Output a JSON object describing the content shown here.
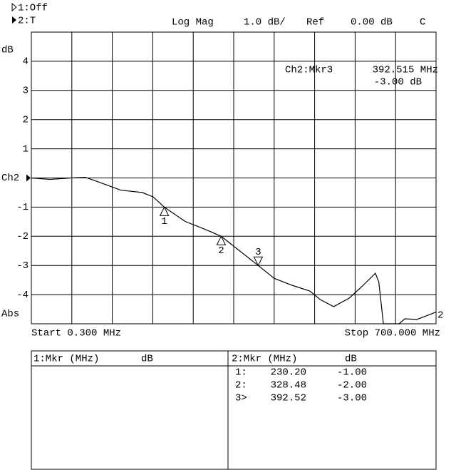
{
  "chart_data": {
    "type": "line",
    "y_unit_label": "dB",
    "ref_label": "Abs",
    "trace_label": "2",
    "start_label": "Start 0.300 MHz",
    "stop_label": "Stop 700.000 MHz",
    "x": [
      0.3,
      32,
      69,
      94,
      118,
      155,
      192,
      211,
      230.2,
      266,
      303,
      328.5,
      352,
      392.5,
      420,
      451,
      482,
      500,
      523,
      550,
      574,
      595,
      601,
      609,
      636,
      646,
      667,
      700
    ],
    "values": [
      0,
      -0.05,
      0,
      0.02,
      -0.15,
      -0.42,
      -0.5,
      -0.65,
      -1.0,
      -1.49,
      -1.78,
      -2.0,
      -2.37,
      -3.0,
      -3.44,
      -3.68,
      -3.88,
      -4.17,
      -4.41,
      -4.12,
      -3.68,
      -3.27,
      -3.56,
      -5.0,
      -5.0,
      -4.83,
      -4.85,
      -4.6
    ],
    "color": "#000000",
    "xlim": [
      0.3,
      700
    ],
    "ylim": [
      -5,
      5
    ],
    "yticks": [
      4,
      3,
      2,
      1,
      {
        "value": 0,
        "label": "Ch2"
      },
      -1,
      -2,
      -3,
      -4
    ],
    "grid": true,
    "markers": [
      {
        "label": "1",
        "x": 230.2,
        "value": -1.0,
        "active": false
      },
      {
        "label": "2",
        "x": 328.48,
        "value": -2.0,
        "active": false
      },
      {
        "label": "3",
        "x": 392.52,
        "value": -3.0,
        "active": true
      }
    ]
  },
  "header": {
    "ch1": "1:Off",
    "ch2": "2:T",
    "format": "Log Mag",
    "scale": "1.0 dB/",
    "ref": "Ref",
    "ref_value": "0.00 dB",
    "flag": "C"
  },
  "readout": {
    "marker": "Ch2:Mkr3",
    "freq": "392.515 MHz",
    "level": "-3.00 dB"
  },
  "table": {
    "left_header": [
      "1:Mkr (MHz)",
      "dB"
    ],
    "right_header": [
      "2:Mkr (MHz)",
      "dB"
    ],
    "rows": [
      [
        "1:",
        "230.20",
        "-1.00"
      ],
      [
        "2:",
        "328.48",
        "-2.00"
      ],
      [
        "3>",
        "392.52",
        "-3.00"
      ]
    ]
  }
}
